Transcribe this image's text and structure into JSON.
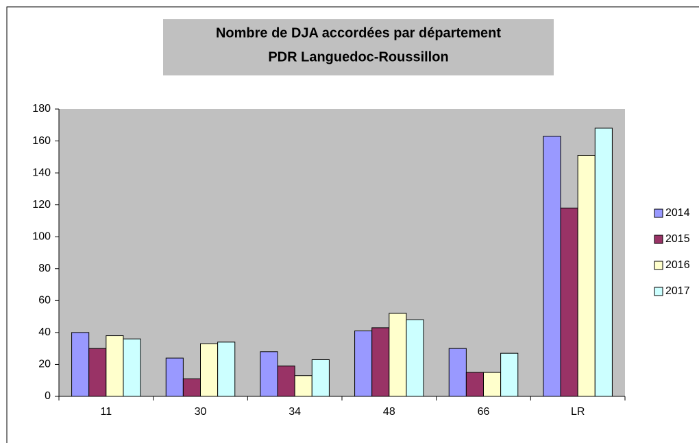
{
  "chart_data": {
    "type": "bar",
    "title_lines": [
      "Nombre de DJA accordées par département",
      "PDR Languedoc-Roussillon"
    ],
    "categories": [
      "11",
      "30",
      "34",
      "48",
      "66",
      "LR"
    ],
    "series": [
      {
        "name": "2014",
        "color": "#9999ff",
        "values": [
          40,
          24,
          28,
          41,
          30,
          163
        ]
      },
      {
        "name": "2015",
        "color": "#993366",
        "values": [
          30,
          11,
          19,
          43,
          15,
          118
        ]
      },
      {
        "name": "2016",
        "color": "#ffffcc",
        "values": [
          38,
          33,
          13,
          52,
          15,
          151
        ]
      },
      {
        "name": "2017",
        "color": "#ccffff",
        "values": [
          36,
          34,
          23,
          48,
          27,
          168
        ]
      }
    ],
    "ylim": [
      0,
      180
    ],
    "yticks": [
      0,
      20,
      40,
      60,
      80,
      100,
      120,
      140,
      160,
      180
    ],
    "grid": false,
    "legend": "right"
  }
}
